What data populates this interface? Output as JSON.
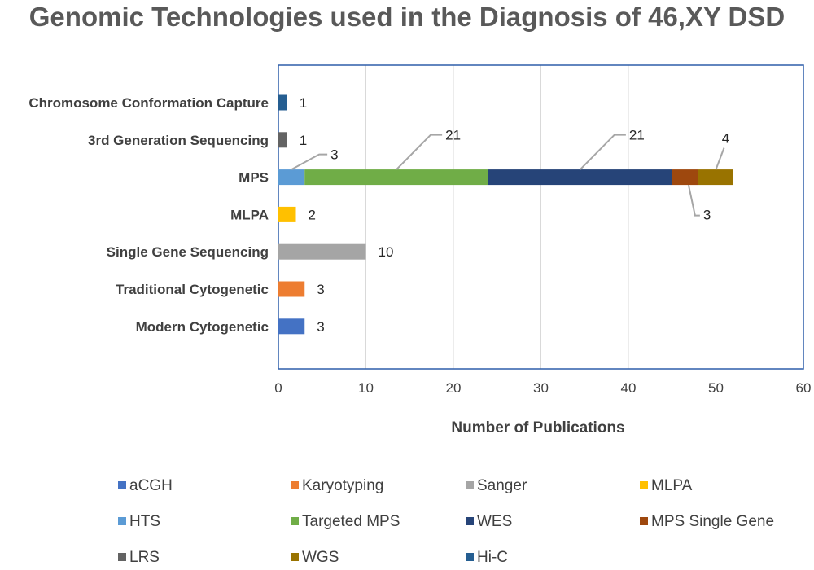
{
  "chart_data": {
    "type": "bar",
    "orientation": "horizontal",
    "stacked": true,
    "title": "Genomic Technologies used in the Diagnosis of 46,XY DSD",
    "xlabel": "Number of Publications",
    "ylabel": "",
    "xlim": [
      0,
      60
    ],
    "x_ticks": [
      0,
      10,
      20,
      30,
      40,
      50,
      60
    ],
    "grid": "vertical",
    "legend_position": "bottom",
    "categories": [
      "Chromosome Conformation Capture",
      "3rd Generation Sequencing",
      "MPS",
      "MLPA",
      "Single Gene Sequencing",
      "Traditional Cytogenetic",
      "Modern Cytogenetic"
    ],
    "series": [
      {
        "name": "aCGH",
        "color": "#4472C4",
        "values": [
          0,
          0,
          0,
          0,
          0,
          0,
          3
        ]
      },
      {
        "name": "Karyotyping",
        "color": "#ED7D31",
        "values": [
          0,
          0,
          0,
          0,
          0,
          3,
          0
        ]
      },
      {
        "name": "Sanger",
        "color": "#A5A5A5",
        "values": [
          0,
          0,
          0,
          0,
          10,
          0,
          0
        ]
      },
      {
        "name": "MLPA",
        "color": "#FFC000",
        "values": [
          0,
          0,
          0,
          2,
          0,
          0,
          0
        ]
      },
      {
        "name": "HTS",
        "color": "#5B9BD5",
        "values": [
          0,
          0,
          3,
          0,
          0,
          0,
          0
        ]
      },
      {
        "name": "Targeted MPS",
        "color": "#70AD47",
        "values": [
          0,
          0,
          21,
          0,
          0,
          0,
          0
        ]
      },
      {
        "name": "WES",
        "color": "#264478",
        "values": [
          0,
          0,
          21,
          0,
          0,
          0,
          0
        ]
      },
      {
        "name": "MPS Single Gene",
        "color": "#9E480E",
        "values": [
          0,
          0,
          3,
          0,
          0,
          0,
          0
        ]
      },
      {
        "name": "LRS",
        "color": "#636363",
        "values": [
          0,
          1,
          0,
          0,
          0,
          0,
          0
        ]
      },
      {
        "name": "WGS",
        "color": "#997300",
        "values": [
          0,
          0,
          4,
          0,
          0,
          0,
          0
        ]
      },
      {
        "name": "Hi-C",
        "color": "#255E91",
        "values": [
          1,
          0,
          0,
          0,
          0,
          0,
          0
        ]
      }
    ]
  }
}
